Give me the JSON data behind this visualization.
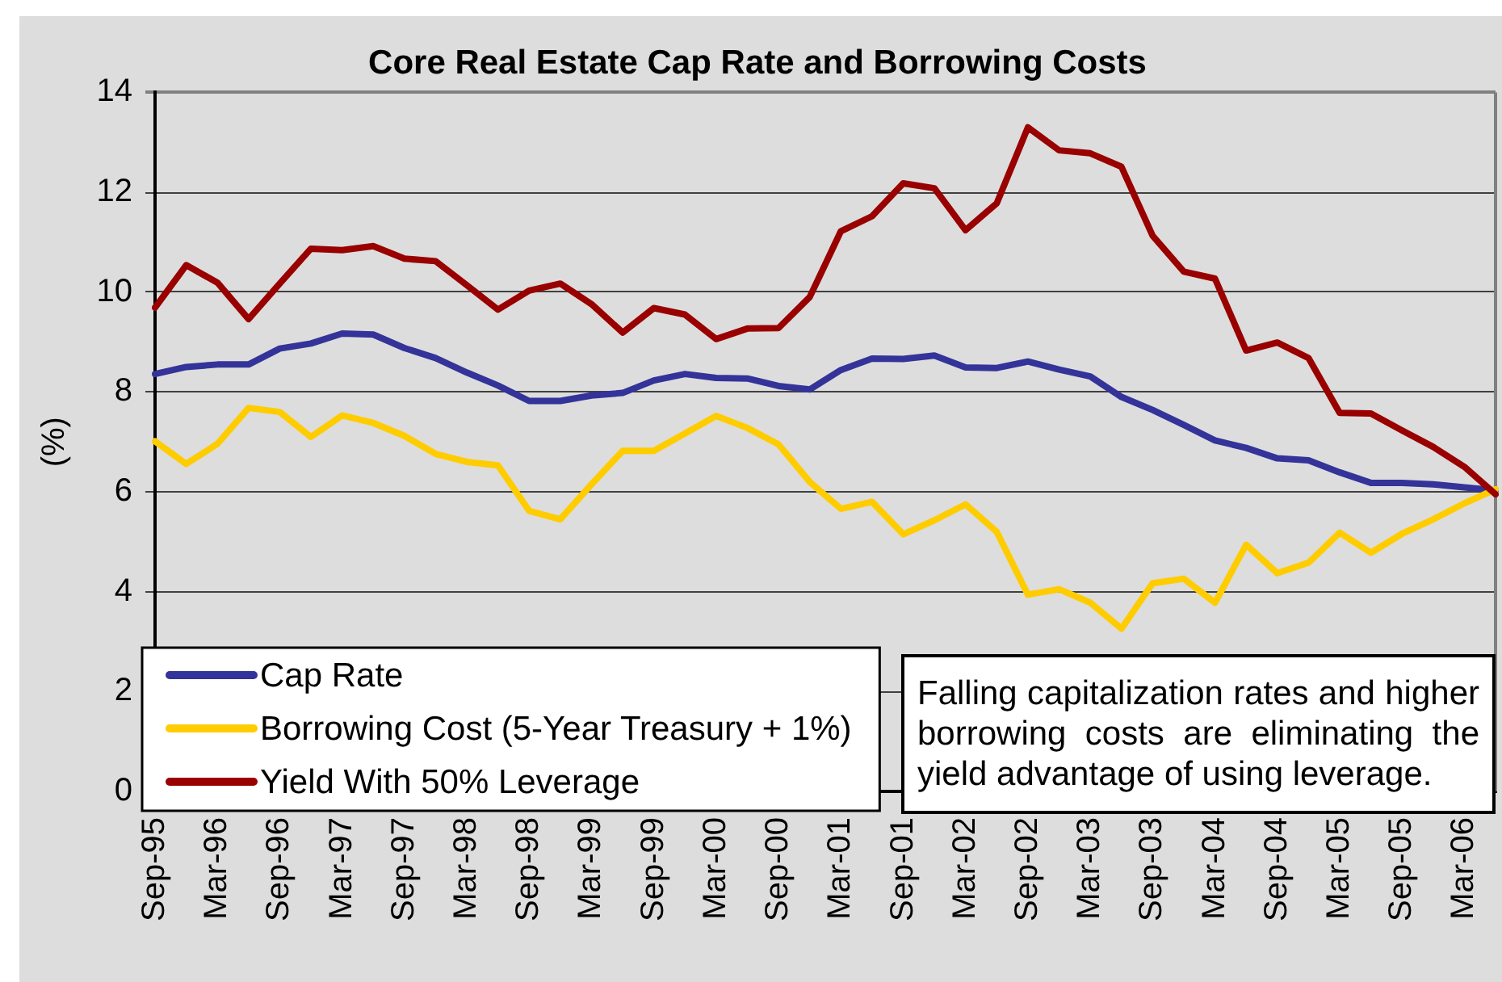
{
  "chart_data": {
    "type": "line",
    "title": "Core Real Estate Cap Rate and Borrowing Costs",
    "ylabel": "(%)",
    "categories": [
      "Sep-95",
      null,
      "Mar-96",
      null,
      "Sep-96",
      null,
      "Mar-97",
      null,
      "Sep-97",
      null,
      "Mar-98",
      null,
      "Sep-98",
      null,
      "Mar-99",
      null,
      "Sep-99",
      null,
      "Mar-00",
      null,
      "Sep-00",
      null,
      "Mar-01",
      null,
      "Sep-01",
      null,
      "Mar-02",
      null,
      "Sep-02",
      null,
      "Mar-03",
      null,
      "Sep-03",
      null,
      "Mar-04",
      null,
      "Sep-04",
      null,
      "Mar-05",
      null,
      "Sep-05",
      null,
      "Mar-06",
      null
    ],
    "series": [
      {
        "name": "Cap Rate",
        "color": "#333399",
        "values": [
          8.36,
          8.5,
          8.55,
          8.55,
          8.87,
          8.97,
          9.17,
          9.15,
          8.88,
          8.68,
          8.39,
          8.13,
          7.82,
          7.82,
          7.93,
          7.98,
          8.23,
          8.36,
          8.28,
          8.27,
          8.12,
          8.05,
          8.44,
          8.67,
          8.66,
          8.73,
          8.49,
          8.48,
          8.61,
          8.45,
          8.31,
          7.9,
          7.64,
          7.34,
          7.03,
          6.88,
          6.67,
          6.63,
          6.39,
          6.18,
          6.18,
          6.15,
          6.09,
          6.03
        ]
      },
      {
        "name": "Borrowing Cost (5-Year Treasury + 1%)",
        "color": "#ffcc00",
        "values": [
          7.01,
          6.56,
          6.96,
          7.68,
          7.6,
          7.1,
          7.53,
          7.38,
          7.12,
          6.76,
          6.6,
          6.53,
          5.62,
          5.45,
          6.15,
          6.82,
          6.82,
          7.17,
          7.52,
          7.28,
          6.95,
          6.2,
          5.66,
          5.8,
          5.15,
          5.43,
          5.75,
          5.2,
          3.94,
          4.05,
          3.78,
          3.26,
          4.17,
          4.26,
          3.78,
          4.94,
          4.37,
          4.58,
          5.18,
          4.78,
          5.16,
          5.45,
          5.77,
          6.05
        ]
      },
      {
        "name": "Yield With 50% Leverage",
        "color": "#990000",
        "values": [
          9.69,
          10.54,
          10.19,
          9.46,
          10.17,
          10.87,
          10.84,
          10.92,
          10.67,
          10.62,
          10.14,
          9.65,
          10.03,
          10.17,
          9.76,
          9.19,
          9.68,
          9.55,
          9.06,
          9.27,
          9.28,
          9.9,
          11.22,
          11.52,
          12.18,
          12.08,
          11.24,
          11.78,
          13.3,
          12.84,
          12.78,
          12.51,
          11.13,
          10.41,
          10.27,
          8.83,
          8.99,
          8.68,
          7.58,
          7.57,
          7.23,
          6.9,
          6.5,
          5.95
        ]
      }
    ],
    "ylim": [
      0,
      14
    ],
    "yticks": [
      0,
      2,
      4,
      6,
      8,
      10,
      12,
      14
    ],
    "grid": "y",
    "legend": "bottom left",
    "marker": "none",
    "line_style": "solid",
    "annotations": [
      "Falling capitalization rates and higher borrowing costs are eliminating the yield advantage of using leverage."
    ]
  }
}
